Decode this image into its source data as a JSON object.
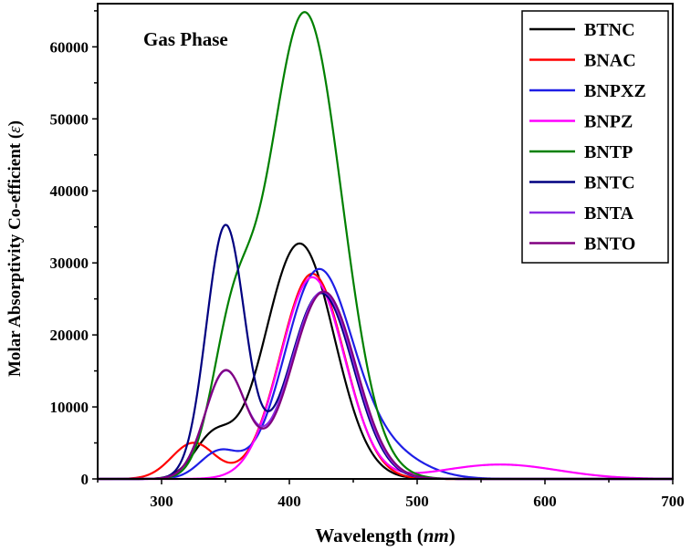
{
  "chart_data": {
    "type": "line",
    "title": "",
    "annotation": "Gas Phase",
    "xlabel": "Wavelength (nm)",
    "xlabel_main": "Wavelength ",
    "xlabel_unit": "nm",
    "ylabel": "Molar Absorptivity Co-efficient (ε)",
    "ylabel_main": "Molar Absorptivity Co-efficient ",
    "ylabel_symbol": "ε",
    "xlim": [
      250,
      700
    ],
    "ylim": [
      0,
      66000
    ],
    "xticks": [
      300,
      400,
      500,
      600,
      700
    ],
    "yticks": [
      0,
      10000,
      20000,
      30000,
      40000,
      50000,
      60000
    ],
    "grid": false,
    "legend_position": "top-right",
    "series": [
      {
        "name": "BTNC",
        "color": "#000000",
        "peaks": [
          {
            "center": 408,
            "height": 32700,
            "width": 27
          },
          {
            "center": 340,
            "height": 5400,
            "width": 15
          }
        ]
      },
      {
        "name": "BNAC",
        "color": "#ff0000",
        "peaks": [
          {
            "center": 418,
            "height": 28500,
            "width": 25
          },
          {
            "center": 325,
            "height": 5000,
            "width": 17
          }
        ]
      },
      {
        "name": "BNPXZ",
        "color": "#1e1ee6",
        "peaks": [
          {
            "center": 422,
            "height": 28000,
            "width": 26
          },
          {
            "center": 345,
            "height": 3700,
            "width": 15
          },
          {
            "center": 470,
            "height": 4000,
            "width": 30
          }
        ]
      },
      {
        "name": "BNPZ",
        "color": "#ff00ff",
        "peaks": [
          {
            "center": 418,
            "height": 28000,
            "width": 25
          },
          {
            "center": 565,
            "height": 2000,
            "width": 45
          }
        ]
      },
      {
        "name": "BNTP",
        "color": "#008000",
        "peaks": [
          {
            "center": 412,
            "height": 64800,
            "width": 29
          },
          {
            "center": 355,
            "height": 17000,
            "width": 16
          }
        ]
      },
      {
        "name": "BNTC",
        "color": "#000080",
        "peaks": [
          {
            "center": 350,
            "height": 35000,
            "width": 15
          },
          {
            "center": 425,
            "height": 25800,
            "width": 25
          }
        ]
      },
      {
        "name": "BNTA",
        "color": "#8a2be2",
        "peaks": [
          {
            "center": 426,
            "height": 26000,
            "width": 25
          },
          {
            "center": 350,
            "height": 14800,
            "width": 16
          }
        ]
      },
      {
        "name": "BNTO",
        "color": "#800080",
        "peaks": [
          {
            "center": 427,
            "height": 26000,
            "width": 25
          },
          {
            "center": 350,
            "height": 14900,
            "width": 16
          }
        ]
      }
    ]
  }
}
